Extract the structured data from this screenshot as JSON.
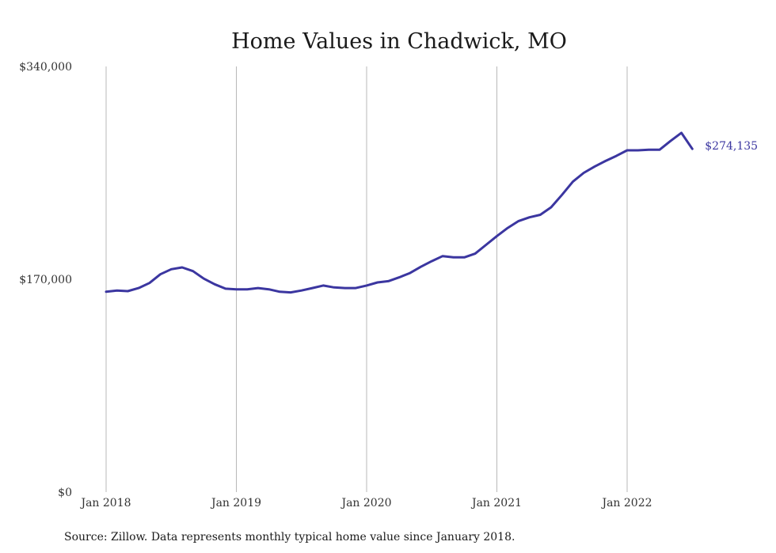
{
  "chart_data": {
    "type": "line",
    "title": "Home Values in Chadwick, MO",
    "xlabel": "",
    "ylabel": "",
    "ylim": [
      0,
      340000
    ],
    "y_ticks": [
      {
        "value": 0,
        "label": "$0"
      },
      {
        "value": 170000,
        "label": "$170,000"
      },
      {
        "value": 340000,
        "label": "$340,000"
      }
    ],
    "x_ticks": [
      {
        "date": "2018-01",
        "label": "Jan 2018"
      },
      {
        "date": "2019-01",
        "label": "Jan 2019"
      },
      {
        "date": "2020-01",
        "label": "Jan 2020"
      },
      {
        "date": "2021-01",
        "label": "Jan 2021"
      },
      {
        "date": "2022-01",
        "label": "Jan 2022"
      }
    ],
    "grid": "vertical",
    "legend": "none",
    "end_label": "$274,135",
    "series": [
      {
        "color": "#3b36a0",
        "points": [
          [
            "2018-01",
            160000
          ],
          [
            "2018-02",
            161000
          ],
          [
            "2018-03",
            160500
          ],
          [
            "2018-04",
            163000
          ],
          [
            "2018-05",
            167000
          ],
          [
            "2018-06",
            174000
          ],
          [
            "2018-07",
            178000
          ],
          [
            "2018-08",
            179500
          ],
          [
            "2018-09",
            176500
          ],
          [
            "2018-10",
            170500
          ],
          [
            "2018-11",
            166000
          ],
          [
            "2018-12",
            162500
          ],
          [
            "2019-01",
            162000
          ],
          [
            "2019-02",
            162000
          ],
          [
            "2019-03",
            163000
          ],
          [
            "2019-04",
            162000
          ],
          [
            "2019-05",
            160000
          ],
          [
            "2019-06",
            159500
          ],
          [
            "2019-07",
            161000
          ],
          [
            "2019-08",
            163000
          ],
          [
            "2019-09",
            165000
          ],
          [
            "2019-10",
            163500
          ],
          [
            "2019-11",
            163000
          ],
          [
            "2019-12",
            163000
          ],
          [
            "2020-01",
            165000
          ],
          [
            "2020-02",
            167500
          ],
          [
            "2020-03",
            168500
          ],
          [
            "2020-04",
            171500
          ],
          [
            "2020-05",
            175000
          ],
          [
            "2020-06",
            180000
          ],
          [
            "2020-07",
            184500
          ],
          [
            "2020-08",
            188500
          ],
          [
            "2020-09",
            187500
          ],
          [
            "2020-10",
            187500
          ],
          [
            "2020-11",
            190500
          ],
          [
            "2020-12",
            197500
          ],
          [
            "2021-01",
            204500
          ],
          [
            "2021-02",
            211000
          ],
          [
            "2021-03",
            216500
          ],
          [
            "2021-04",
            219500
          ],
          [
            "2021-05",
            221500
          ],
          [
            "2021-06",
            227500
          ],
          [
            "2021-07",
            237500
          ],
          [
            "2021-08",
            248000
          ],
          [
            "2021-09",
            255000
          ],
          [
            "2021-10",
            260000
          ],
          [
            "2021-11",
            264500
          ],
          [
            "2021-12",
            268500
          ],
          [
            "2022-01",
            273000
          ],
          [
            "2022-02",
            273000
          ],
          [
            "2022-03",
            273500
          ],
          [
            "2022-04",
            273500
          ],
          [
            "2022-05",
            280500
          ],
          [
            "2022-06",
            287000
          ],
          [
            "2022-07",
            274135
          ]
        ]
      }
    ]
  },
  "footer": {
    "source": "Source: Zillow. Data represents monthly typical home value since January 2018."
  }
}
